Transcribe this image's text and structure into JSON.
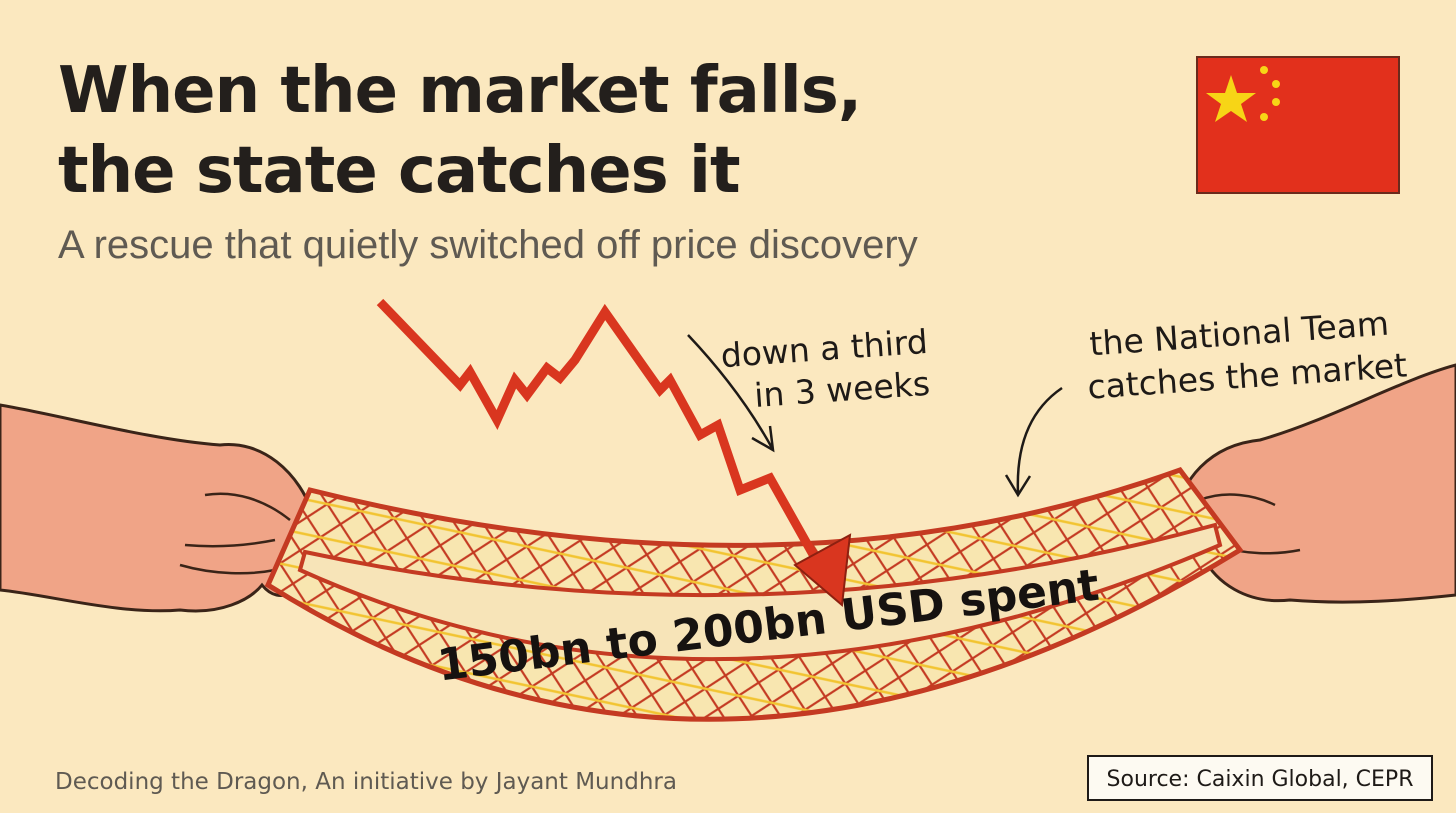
{
  "title_lines": [
    "When the market falls,",
    "the state catches it"
  ],
  "subtitle": "A rescue that quietly switched off price discovery",
  "annotations": {
    "drop": [
      "down a third",
      "in 3 weeks"
    ],
    "net": [
      "the National Team",
      "catches the market"
    ]
  },
  "net_label": "150bn to 200bn USD spent",
  "footer": "Decoding the Dragon, An initiative by Jayant Mundhra",
  "source": "Source: Caixin Global, CEPR"
}
